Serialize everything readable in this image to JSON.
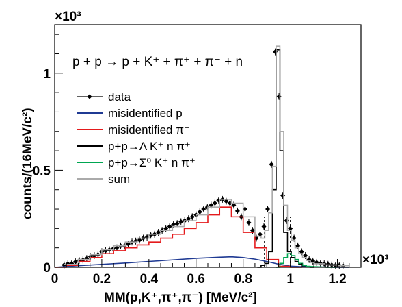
{
  "chart_data": {
    "type": "line",
    "reaction": "p + p → p + K⁺ + π⁺ + π⁻ + n",
    "xlabel": "MM(p,K⁺,π⁺,π⁻)   [MeV/c²]",
    "ylabel": "counts/(16MeV/c²)",
    "x_multiplier": "×10³",
    "y_multiplier": "×10³",
    "xlim": [
      0,
      1.3
    ],
    "ylim": [
      0,
      1.25
    ],
    "x_ticks": [
      "0",
      "0.2",
      "0.4",
      "0.6",
      "0.8",
      "1",
      "1.2"
    ],
    "y_ticks": [
      "0",
      "0.5",
      "1"
    ],
    "legend_position": "left",
    "series": [
      {
        "name": "data",
        "color": "#000000",
        "style": "points",
        "x": [
          0.04,
          0.056,
          0.072,
          0.088,
          0.104,
          0.12,
          0.136,
          0.152,
          0.168,
          0.184,
          0.2,
          0.216,
          0.232,
          0.248,
          0.264,
          0.28,
          0.296,
          0.312,
          0.328,
          0.344,
          0.36,
          0.376,
          0.392,
          0.408,
          0.424,
          0.44,
          0.456,
          0.472,
          0.488,
          0.504,
          0.52,
          0.536,
          0.552,
          0.568,
          0.584,
          0.6,
          0.616,
          0.632,
          0.648,
          0.664,
          0.68,
          0.696,
          0.712,
          0.728,
          0.744,
          0.76,
          0.776,
          0.792,
          0.808,
          0.824,
          0.84,
          0.856,
          0.872,
          0.888,
          0.904,
          0.92,
          0.936,
          0.952,
          0.968,
          0.984,
          1.0,
          1.016,
          1.032,
          1.048,
          1.064,
          1.08,
          1.096,
          1.112,
          1.128,
          1.144,
          1.16,
          1.176,
          1.192,
          1.208,
          1.224
        ],
        "y": [
          0.012,
          0.018,
          0.02,
          0.028,
          0.035,
          0.038,
          0.045,
          0.055,
          0.06,
          0.065,
          0.08,
          0.085,
          0.09,
          0.095,
          0.1,
          0.11,
          0.11,
          0.12,
          0.13,
          0.135,
          0.14,
          0.15,
          0.155,
          0.165,
          0.17,
          0.18,
          0.19,
          0.2,
          0.21,
          0.22,
          0.225,
          0.235,
          0.24,
          0.25,
          0.26,
          0.27,
          0.285,
          0.3,
          0.31,
          0.32,
          0.33,
          0.345,
          0.35,
          0.34,
          0.33,
          0.32,
          0.29,
          0.26,
          0.3,
          0.23,
          0.19,
          0.15,
          0.17,
          0.21,
          0.3,
          0.53,
          1.11,
          0.88,
          0.37,
          0.24,
          0.2,
          0.15,
          0.11,
          0.08,
          0.06,
          0.04,
          0.032,
          0.025,
          0.02,
          0.018,
          0.015,
          0.012,
          0.01,
          0.01,
          0.008
        ]
      },
      {
        "name": "misidentified p",
        "color": "#1f3a93",
        "style": "line",
        "x": [
          0.0,
          0.1,
          0.2,
          0.3,
          0.4,
          0.5,
          0.6,
          0.7,
          0.75,
          0.8,
          0.85,
          0.9,
          0.95,
          1.0,
          1.05,
          1.1,
          1.15,
          1.2,
          1.25
        ],
        "y": [
          0.0,
          0.008,
          0.015,
          0.022,
          0.03,
          0.038,
          0.046,
          0.052,
          0.054,
          0.05,
          0.042,
          0.03,
          0.016,
          0.006,
          0.003,
          0.002,
          0.001,
          0.0,
          0.0
        ]
      },
      {
        "name": "misidentified π⁺",
        "color": "#e41a1c",
        "style": "step",
        "x": [
          0.0,
          0.05,
          0.1,
          0.15,
          0.2,
          0.25,
          0.3,
          0.35,
          0.4,
          0.45,
          0.5,
          0.55,
          0.6,
          0.65,
          0.7,
          0.75,
          0.8,
          0.85,
          0.9,
          0.95,
          1.0
        ],
        "y": [
          0.0,
          0.01,
          0.03,
          0.05,
          0.07,
          0.085,
          0.1,
          0.115,
          0.13,
          0.15,
          0.17,
          0.2,
          0.23,
          0.27,
          0.31,
          0.26,
          0.18,
          0.1,
          0.04,
          0.005,
          0.0
        ]
      },
      {
        "name": "p+p→Λ K⁺ n π⁺",
        "color": "#000000",
        "style": "step",
        "x": [
          0.86,
          0.876,
          0.892,
          0.908,
          0.924,
          0.94,
          0.956,
          0.972,
          0.988,
          1.004,
          1.02,
          1.036,
          1.052,
          1.068,
          1.084
        ],
        "y": [
          0.0,
          0.01,
          0.02,
          0.08,
          0.4,
          1.12,
          0.6,
          0.18,
          0.08,
          0.05,
          0.03,
          0.015,
          0.008,
          0.003,
          0.0
        ]
      },
      {
        "name": "p+p→Σ⁰ K⁺ n π⁺",
        "color": "#00a651",
        "style": "step",
        "x": [
          0.94,
          0.956,
          0.972,
          0.988,
          1.004,
          1.02,
          1.036,
          1.052,
          1.068,
          1.084,
          1.1,
          1.116,
          1.132,
          1.148,
          1.164,
          1.18
        ],
        "y": [
          0.0,
          0.02,
          0.05,
          0.07,
          0.06,
          0.04,
          0.02,
          0.01,
          0.005,
          0.004,
          0.003,
          0.002,
          0.001,
          0.0,
          0.0,
          0.0
        ]
      },
      {
        "name": "sum",
        "color": "#aaaaaa",
        "style": "step",
        "x": [
          0.04,
          0.1,
          0.15,
          0.2,
          0.25,
          0.3,
          0.35,
          0.4,
          0.45,
          0.5,
          0.55,
          0.6,
          0.65,
          0.7,
          0.75,
          0.8,
          0.85,
          0.876,
          0.892,
          0.908,
          0.924,
          0.94,
          0.956,
          0.972,
          0.988,
          1.004,
          1.02,
          1.036,
          1.052,
          1.068,
          1.084,
          1.1,
          1.15,
          1.2
        ],
        "y": [
          0.015,
          0.04,
          0.065,
          0.09,
          0.11,
          0.13,
          0.15,
          0.17,
          0.19,
          0.21,
          0.24,
          0.27,
          0.31,
          0.35,
          0.33,
          0.26,
          0.16,
          0.15,
          0.19,
          0.28,
          0.52,
          1.14,
          0.7,
          0.32,
          0.19,
          0.14,
          0.1,
          0.07,
          0.05,
          0.035,
          0.025,
          0.018,
          0.012,
          0.008
        ]
      }
    ],
    "cut_lines_x": [
      0.89,
      1.0
    ]
  }
}
